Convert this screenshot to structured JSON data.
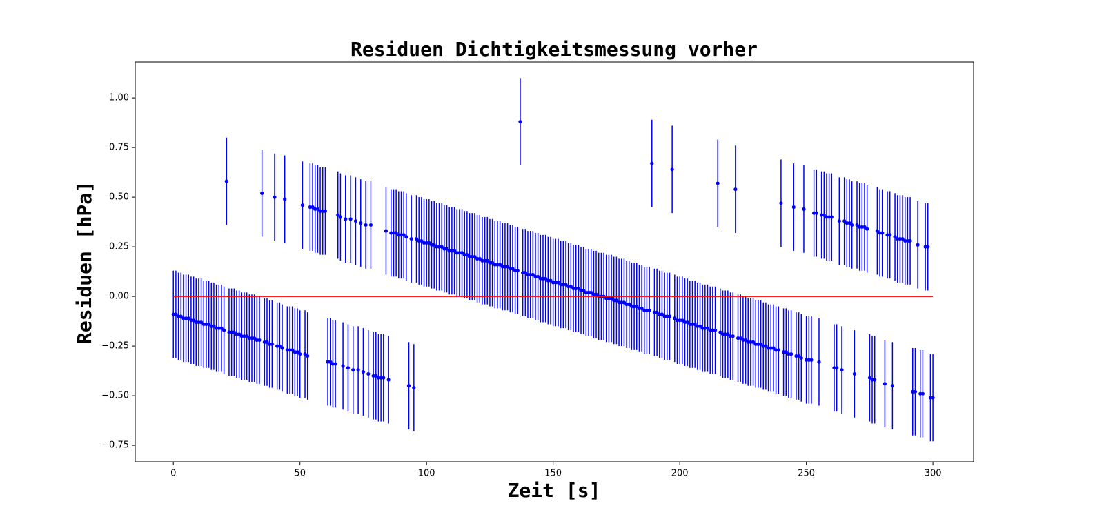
{
  "chart_data": {
    "type": "errorbar",
    "title": "Residuen Dichtigkeitsmessung vorher",
    "x_label": "Zeit [s]",
    "y_label": "Residuen [hPa]",
    "xlim": [
      -15.05,
      316.05
    ],
    "ylim": [
      -0.833,
      1.181
    ],
    "xticks": [
      0,
      50,
      100,
      150,
      200,
      250,
      300
    ],
    "yticks": [
      {
        "value": -0.75,
        "label": "−0.75"
      },
      {
        "value": -0.5,
        "label": "−0.50"
      },
      {
        "value": -0.25,
        "label": "−0.25"
      },
      {
        "value": 0,
        "label": "0.00"
      },
      {
        "value": 0.25,
        "label": "0.25"
      },
      {
        "value": 0.5,
        "label": "0.50"
      },
      {
        "value": 0.75,
        "label": "0.75"
      },
      {
        "value": 1,
        "label": "1.00"
      }
    ],
    "series": [
      {
        "type": "errorbar",
        "color": "#0000ff",
        "yerr": 0.22,
        "x": [
          0,
          1,
          2,
          3,
          4,
          5,
          6,
          7,
          8,
          9,
          10,
          11,
          12,
          13,
          14,
          15,
          16,
          17,
          18,
          19,
          20,
          21,
          22,
          23,
          24,
          25,
          26,
          27,
          28,
          29,
          30,
          31,
          32,
          33,
          34,
          35,
          36,
          37,
          38,
          39,
          40,
          41,
          42,
          43,
          44,
          45,
          46,
          47,
          48,
          49,
          50,
          51,
          52,
          53,
          54,
          55,
          56,
          57,
          58,
          59,
          60,
          61,
          62,
          63,
          64,
          65,
          66,
          67,
          68,
          69,
          70,
          71,
          72,
          73,
          74,
          75,
          76,
          77,
          78,
          79,
          80,
          81,
          82,
          83,
          84,
          85,
          86,
          87,
          88,
          89,
          90,
          91,
          92,
          93,
          94,
          95,
          96,
          97,
          98,
          99,
          100,
          101,
          102,
          103,
          104,
          105,
          106,
          107,
          108,
          109,
          110,
          111,
          112,
          113,
          114,
          115,
          116,
          117,
          118,
          119,
          120,
          121,
          122,
          123,
          124,
          125,
          126,
          127,
          128,
          129,
          130,
          131,
          132,
          133,
          134,
          135,
          136,
          137,
          138,
          139,
          140,
          141,
          142,
          143,
          144,
          145,
          146,
          147,
          148,
          149,
          150,
          151,
          152,
          153,
          154,
          155,
          156,
          157,
          158,
          159,
          160,
          161,
          162,
          163,
          164,
          165,
          166,
          167,
          168,
          169,
          170,
          171,
          172,
          173,
          174,
          175,
          176,
          177,
          178,
          179,
          180,
          181,
          182,
          183,
          184,
          185,
          186,
          187,
          188,
          189,
          190,
          191,
          192,
          193,
          194,
          195,
          196,
          197,
          198,
          199,
          200,
          201,
          202,
          203,
          204,
          205,
          206,
          207,
          208,
          209,
          210,
          211,
          212,
          213,
          214,
          215,
          216,
          217,
          218,
          219,
          220,
          221,
          222,
          223,
          224,
          225,
          226,
          227,
          228,
          229,
          230,
          231,
          232,
          233,
          234,
          235,
          236,
          237,
          238,
          239,
          240,
          241,
          242,
          243,
          244,
          245,
          246,
          247,
          248,
          249,
          250,
          251,
          252,
          253,
          254,
          255,
          256,
          257,
          258,
          259,
          260,
          261,
          262,
          263,
          264,
          265,
          266,
          267,
          268,
          269,
          270,
          271,
          272,
          273,
          274,
          275,
          276,
          277,
          278,
          279,
          280,
          281,
          282,
          283,
          284,
          285,
          286,
          287,
          288,
          289,
          290,
          291,
          292,
          293,
          294,
          295,
          296,
          297,
          298,
          299,
          300
        ],
        "values": [
          -0.09,
          -0.09,
          -0.1,
          -0.1,
          -0.11,
          -0.11,
          -0.11,
          -0.12,
          -0.12,
          -0.13,
          -0.13,
          -0.13,
          -0.14,
          -0.14,
          -0.14,
          -0.15,
          -0.15,
          -0.16,
          -0.16,
          -0.16,
          -0.17,
          0.58,
          -0.18,
          -0.18,
          -0.18,
          -0.19,
          -0.19,
          -0.2,
          -0.2,
          -0.2,
          -0.21,
          -0.21,
          -0.21,
          -0.22,
          -0.22,
          0.52,
          -0.23,
          -0.23,
          -0.24,
          -0.24,
          0.5,
          -0.25,
          -0.25,
          -0.26,
          0.49,
          -0.27,
          -0.27,
          -0.27,
          -0.28,
          -0.28,
          -0.29,
          0.46,
          -0.29,
          -0.3,
          0.45,
          0.45,
          0.44,
          0.44,
          0.43,
          0.43,
          0.43,
          -0.33,
          -0.33,
          -0.34,
          -0.34,
          0.41,
          0.4,
          -0.35,
          0.39,
          -0.36,
          0.39,
          -0.37,
          0.38,
          -0.37,
          0.37,
          -0.38,
          0.36,
          -0.39,
          0.36,
          -0.4,
          -0.4,
          -0.41,
          -0.41,
          -0.41,
          0.33,
          -0.42,
          0.32,
          0.32,
          0.32,
          0.31,
          0.31,
          0.31,
          0.3,
          -0.45,
          0.29,
          -0.46,
          0.29,
          0.28,
          0.28,
          0.27,
          0.27,
          0.27,
          0.26,
          0.26,
          0.25,
          0.25,
          0.25,
          0.24,
          0.24,
          0.23,
          0.23,
          0.23,
          0.22,
          0.22,
          0.22,
          0.21,
          0.21,
          0.2,
          0.2,
          0.2,
          0.19,
          0.19,
          0.18,
          0.18,
          0.18,
          0.17,
          0.17,
          0.16,
          0.16,
          0.16,
          0.15,
          0.15,
          0.15,
          0.14,
          0.14,
          0.13,
          0.13,
          0.88,
          0.12,
          0.12,
          0.11,
          0.11,
          0.11,
          0.1,
          0.1,
          0.09,
          0.09,
          0.09,
          0.08,
          0.08,
          0.07,
          0.07,
          0.07,
          0.06,
          0.06,
          0.06,
          0.05,
          0.05,
          0.04,
          0.04,
          0.04,
          0.03,
          0.03,
          0.02,
          0.02,
          0.02,
          0.01,
          0.01,
          0,
          0,
          0,
          -0.01,
          -0.01,
          -0.01,
          -0.02,
          -0.02,
          -0.03,
          -0.03,
          -0.03,
          -0.04,
          -0.04,
          -0.05,
          -0.05,
          -0.05,
          -0.06,
          -0.06,
          -0.07,
          -0.07,
          -0.07,
          0.67,
          -0.08,
          -0.08,
          -0.09,
          -0.09,
          -0.1,
          -0.1,
          -0.1,
          0.64,
          -0.11,
          -0.12,
          -0.12,
          -0.12,
          -0.13,
          -0.13,
          -0.14,
          -0.14,
          -0.14,
          -0.15,
          -0.15,
          -0.16,
          -0.16,
          -0.16,
          -0.17,
          -0.17,
          -0.17,
          0.57,
          -0.18,
          -0.19,
          -0.19,
          -0.19,
          -0.2,
          -0.2,
          0.54,
          -0.21,
          -0.21,
          -0.22,
          -0.22,
          -0.23,
          -0.23,
          -0.23,
          -0.24,
          -0.24,
          -0.24,
          -0.25,
          -0.25,
          -0.26,
          -0.26,
          -0.26,
          -0.27,
          -0.27,
          0.47,
          -0.28,
          -0.28,
          -0.29,
          -0.29,
          0.45,
          -0.3,
          -0.3,
          -0.31,
          0.44,
          -0.32,
          -0.32,
          -0.32,
          0.42,
          0.42,
          -0.33,
          0.41,
          0.41,
          0.4,
          0.4,
          0.4,
          -0.36,
          -0.36,
          0.38,
          -0.37,
          0.38,
          0.37,
          0.37,
          0.36,
          -0.39,
          0.36,
          0.35,
          0.35,
          0.35,
          0.34,
          -0.41,
          -0.42,
          -0.42,
          0.33,
          0.32,
          0.32,
          -0.44,
          0.31,
          0.31,
          -0.45,
          0.3,
          0.29,
          0.29,
          0.29,
          0.28,
          0.28,
          0.28,
          -0.48,
          -0.48,
          0.26,
          -0.49,
          -0.49,
          0.25,
          0.25,
          -0.51,
          -0.51
        ]
      },
      {
        "type": "line",
        "color": "#ff0000",
        "x": [
          0,
          300
        ],
        "values": [
          0,
          0
        ]
      }
    ]
  }
}
